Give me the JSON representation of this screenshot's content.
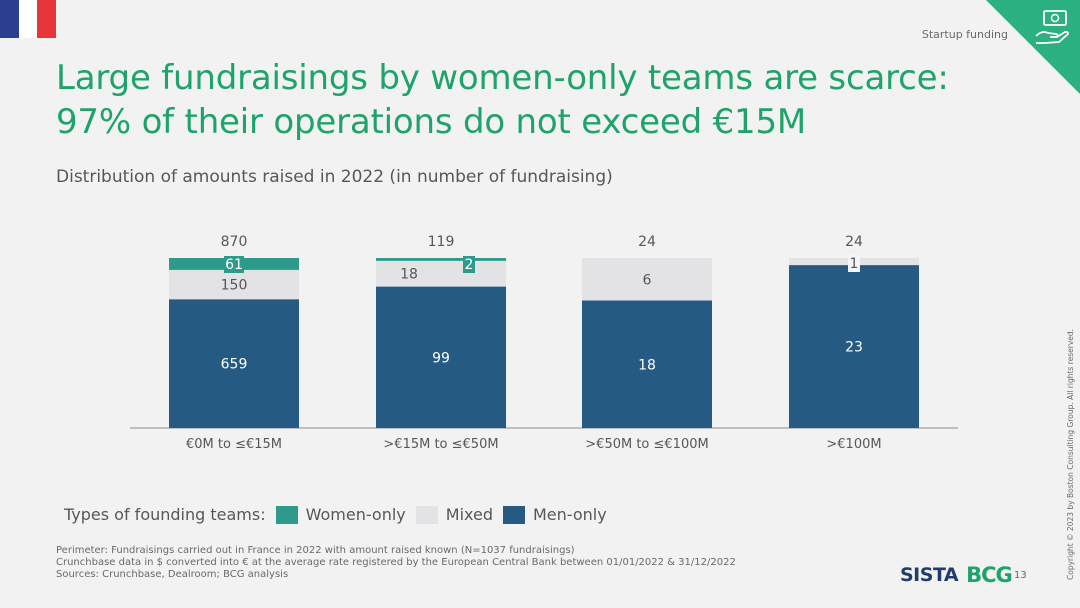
{
  "header": {
    "flag_colors": [
      "#2a3f8f",
      "#ffffff",
      "#e8343b"
    ],
    "section_label": "Startup funding",
    "corner_color": "#2bb07f",
    "corner_icon": "money-hand-icon"
  },
  "title": {
    "line1": "Large fundraisings by women-only teams are scarce:",
    "line2": "97% of their operations do not exceed €15M"
  },
  "subtitle": "Distribution of amounts raised in 2022 (in number of fundraising)",
  "legend": {
    "label": "Types of founding teams:",
    "items": [
      {
        "name": "Women-only",
        "color": "#2e9a8c"
      },
      {
        "name": "Mixed",
        "color": "#e3e3e6"
      },
      {
        "name": "Men-only",
        "color": "#255a83"
      }
    ]
  },
  "chart_data": {
    "type": "bar",
    "stacked": true,
    "normalized": true,
    "categories": [
      "€0M to ≤€15M",
      ">€15M to ≤€50M",
      ">€50M to ≤€100M",
      ">€100M"
    ],
    "totals": [
      "870",
      "119",
      "24",
      "24"
    ],
    "series": [
      {
        "name": "Men-only",
        "color": "#255a83",
        "values": [
          659,
          99,
          18,
          23
        ],
        "labels": [
          "659",
          "99",
          "18",
          "23"
        ]
      },
      {
        "name": "Mixed",
        "color": "#e3e3e6",
        "values": [
          150,
          18,
          6,
          1
        ],
        "labels": [
          "150",
          "18",
          "6",
          "1"
        ]
      },
      {
        "name": "Women-only",
        "color": "#2e9a8c",
        "values": [
          61,
          2,
          0,
          0
        ],
        "labels": [
          "61",
          "2",
          "",
          ""
        ]
      }
    ],
    "grid": false
  },
  "footnotes": [
    "Perimeter: Fundraisings carried out in France in 2022 with amount raised known (N=1037 fundraisings)",
    "Crunchbase data in $ converted into € at the average rate registered by the European Central Bank between 01/01/2022 & 31/12/2022",
    "Sources: Crunchbase, Dealroom; BCG analysis"
  ],
  "logos": {
    "sista": "SISTA",
    "bcg": "BCG"
  },
  "page_number": "13",
  "copyright": "Copyright © 2023 by Boston Consulting Group. All rights reserved."
}
